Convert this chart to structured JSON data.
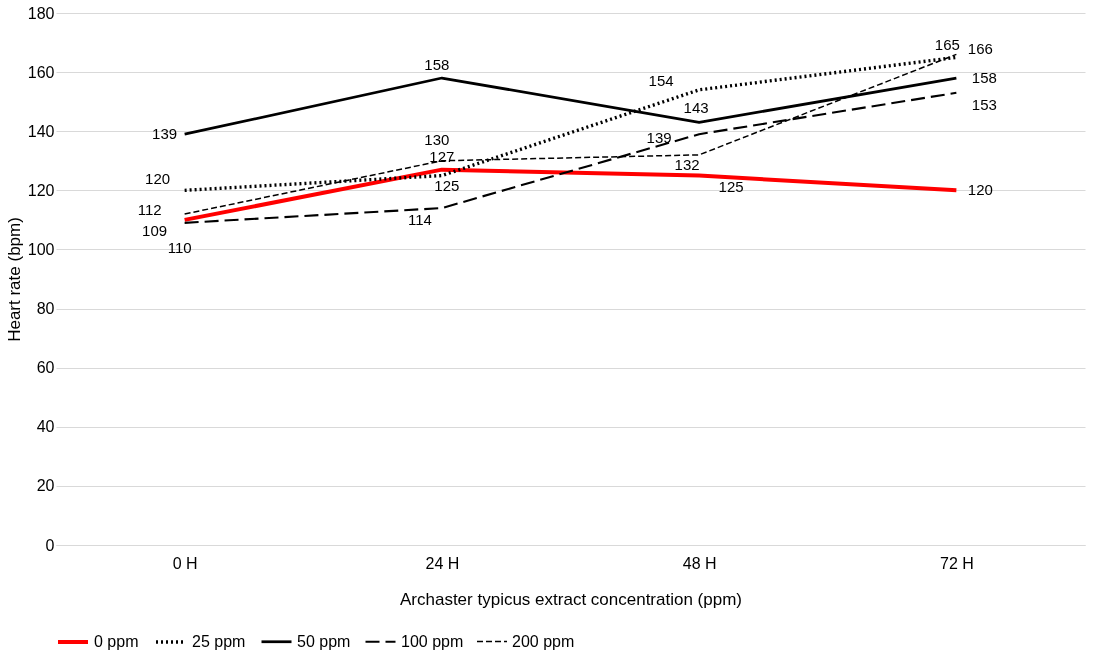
{
  "chart_data": {
    "type": "line",
    "xlabel": "Archaster typicus extract concentration (ppm)",
    "ylabel": "Heart rate (bpm)",
    "categories": [
      "0 H",
      "24 H",
      "48 H",
      "72 H"
    ],
    "series": [
      {
        "name": "0 ppm",
        "color": "#ff0000",
        "line_style": "solid",
        "values": [
          110,
          127,
          125,
          120
        ]
      },
      {
        "name": "25 ppm",
        "color": "#000000",
        "line_style": "dotted",
        "values": [
          120,
          125,
          154,
          165
        ]
      },
      {
        "name": "50 ppm",
        "color": "#000000",
        "line_style": "solid",
        "values": [
          139,
          158,
          143,
          158
        ]
      },
      {
        "name": "100 ppm",
        "color": "#000000",
        "line_style": "dashed",
        "values": [
          109,
          114,
          139,
          153
        ]
      },
      {
        "name": "200 ppm",
        "color": "#000000",
        "line_style": "dashed",
        "values": [
          112,
          130,
          132,
          166
        ]
      }
    ],
    "ylim": [
      0,
      180
    ],
    "yticks": [
      0,
      20,
      40,
      60,
      80,
      100,
      120,
      140,
      160,
      180
    ],
    "grid": "y",
    "legend": "bottom",
    "data_labels": true,
    "marker": "none"
  }
}
